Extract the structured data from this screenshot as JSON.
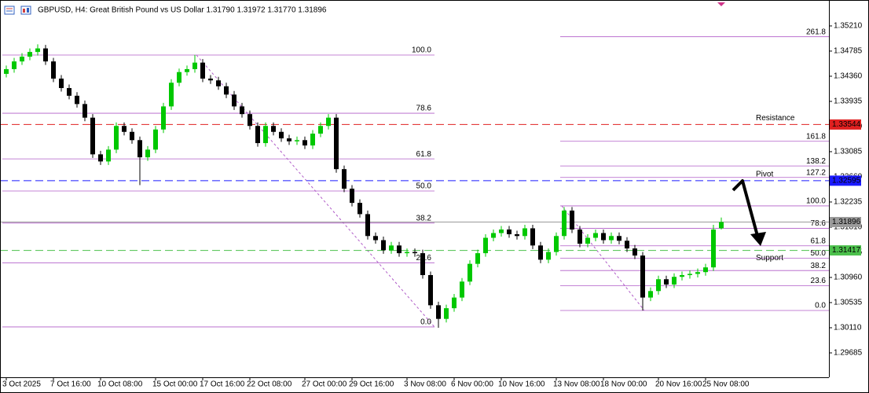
{
  "chart_data": {
    "type": "candlestick",
    "title": "GBPUSD, H4:  Great British Pound vs US Dollar  1.31790 1.31972 1.31770 1.31896",
    "categories": [
      "3 Oct 2025",
      null,
      null,
      null,
      null,
      null,
      "7 Oct 16:00",
      null,
      null,
      null,
      null,
      null,
      "10 Oct 08:00",
      null,
      null,
      null,
      null,
      null,
      null,
      "15 Oct 00:00",
      null,
      null,
      null,
      null,
      null,
      "17 Oct 16:00",
      null,
      null,
      null,
      null,
      null,
      "22 Oct 08:00",
      null,
      null,
      null,
      null,
      null,
      null,
      "27 Oct 00:00",
      null,
      null,
      null,
      null,
      null,
      "29 Oct 16:00",
      null,
      null,
      null,
      null,
      null,
      null,
      "3 Nov 08:00",
      null,
      null,
      null,
      null,
      null,
      "6 Nov 00:00",
      null,
      null,
      null,
      null,
      null,
      "10 Nov 16:00",
      null,
      null,
      null,
      null,
      null,
      null,
      "13 Nov 08:00",
      null,
      null,
      null,
      null,
      null,
      "18 Nov 00:00",
      null,
      null,
      null,
      null,
      null,
      null,
      "20 Nov 16:00",
      null,
      null,
      null,
      null,
      null,
      "25 Nov 08:00",
      null,
      null
    ],
    "open": [
      1.344,
      1.3448,
      1.3461,
      1.3469,
      1.3477,
      1.3483,
      1.3461,
      1.3432,
      1.3416,
      1.3403,
      1.3389,
      1.3366,
      1.3304,
      1.3292,
      1.3312,
      1.3352,
      1.3342,
      1.3328,
      1.3299,
      1.3312,
      1.3346,
      1.3385,
      1.3425,
      1.3443,
      1.3448,
      1.3459,
      1.3432,
      1.3429,
      1.3419,
      1.3405,
      1.3385,
      1.3372,
      1.3352,
      1.3323,
      1.3352,
      1.3342,
      1.3331,
      1.3326,
      1.3328,
      1.3319,
      1.3339,
      1.3352,
      1.3366,
      1.3279,
      1.3246,
      1.3222,
      1.3203,
      1.3166,
      1.3159,
      1.3142,
      1.315,
      1.3137,
      1.3139,
      1.3137,
      1.31,
      1.3049,
      1.3026,
      1.3044,
      1.3062,
      1.3089,
      1.3119,
      1.3137,
      1.3163,
      1.3171,
      1.3177,
      1.3169,
      1.3166,
      1.3179,
      1.315,
      1.3126,
      1.3139,
      1.3166,
      1.3209,
      1.3177,
      1.3153,
      1.3163,
      1.3171,
      1.3159,
      1.3166,
      1.3158,
      1.3145,
      1.3133,
      1.3062,
      1.3073,
      1.3093,
      1.3084,
      1.3097,
      1.31,
      1.3102,
      1.3105,
      1.3113,
      1.3179
    ],
    "high": [
      1.3454,
      1.3467,
      1.3475,
      1.3483,
      1.349,
      1.3489,
      1.3467,
      1.3438,
      1.3422,
      1.3409,
      1.3395,
      1.3372,
      1.331,
      1.3318,
      1.3358,
      1.3358,
      1.3348,
      1.3334,
      1.3318,
      1.3352,
      1.3391,
      1.3431,
      1.3449,
      1.3454,
      1.3472,
      1.3465,
      1.3438,
      1.3435,
      1.3425,
      1.3411,
      1.3391,
      1.3378,
      1.3358,
      1.3358,
      1.3358,
      1.3348,
      1.3337,
      1.3334,
      1.3334,
      1.3345,
      1.3358,
      1.3372,
      1.3372,
      1.3285,
      1.3252,
      1.3228,
      1.3209,
      1.3172,
      1.3165,
      1.3156,
      1.3156,
      1.3145,
      1.3145,
      1.3143,
      1.3106,
      1.3055,
      1.305,
      1.3068,
      1.3095,
      1.3125,
      1.3143,
      1.3169,
      1.3177,
      1.3183,
      1.3183,
      1.3175,
      1.3185,
      1.3185,
      1.3156,
      1.3145,
      1.3172,
      1.3215,
      1.3215,
      1.3183,
      1.3169,
      1.3177,
      1.3177,
      1.3172,
      1.3172,
      1.3164,
      1.3151,
      1.3139,
      1.3079,
      1.3099,
      1.3099,
      1.3103,
      1.3106,
      1.3108,
      1.3111,
      1.3119,
      1.3185,
      1.31972
    ],
    "low": [
      1.3434,
      1.3442,
      1.3455,
      1.3463,
      1.3471,
      1.3455,
      1.3426,
      1.341,
      1.3397,
      1.3383,
      1.336,
      1.3298,
      1.3286,
      1.3286,
      1.3306,
      1.3336,
      1.3322,
      1.3252,
      1.3293,
      1.3306,
      1.334,
      1.3379,
      1.3419,
      1.3437,
      1.3442,
      1.3426,
      1.3423,
      1.3413,
      1.3399,
      1.3379,
      1.3366,
      1.3346,
      1.3317,
      1.3317,
      1.3336,
      1.3325,
      1.332,
      1.332,
      1.3313,
      1.3313,
      1.3333,
      1.3346,
      1.3273,
      1.324,
      1.3216,
      1.3197,
      1.316,
      1.3153,
      1.3136,
      1.3136,
      1.3131,
      1.3131,
      1.3131,
      1.3094,
      1.3043,
      1.3011,
      1.302,
      1.3038,
      1.3056,
      1.3083,
      1.3113,
      1.3131,
      1.3157,
      1.3165,
      1.3163,
      1.316,
      1.316,
      1.3144,
      1.312,
      1.312,
      1.3133,
      1.316,
      1.3171,
      1.3147,
      1.3147,
      1.3157,
      1.3153,
      1.3153,
      1.3152,
      1.3139,
      1.3127,
      1.304,
      1.3056,
      1.3067,
      1.3078,
      1.3078,
      1.3091,
      1.3094,
      1.3096,
      1.3099,
      1.3107,
      1.3177
    ],
    "close": [
      1.3448,
      1.3461,
      1.3469,
      1.3477,
      1.3483,
      1.3461,
      1.3432,
      1.3416,
      1.3403,
      1.3389,
      1.3366,
      1.3304,
      1.3292,
      1.3312,
      1.3352,
      1.3342,
      1.3328,
      1.3299,
      1.3312,
      1.3346,
      1.3385,
      1.3425,
      1.3443,
      1.3448,
      1.3459,
      1.3432,
      1.3429,
      1.3419,
      1.3405,
      1.3385,
      1.3372,
      1.3352,
      1.3323,
      1.3352,
      1.3342,
      1.3331,
      1.3326,
      1.3328,
      1.3319,
      1.3339,
      1.3352,
      1.3366,
      1.3279,
      1.3246,
      1.3222,
      1.3203,
      1.3166,
      1.3159,
      1.3142,
      1.315,
      1.3137,
      1.3139,
      1.3137,
      1.31,
      1.3049,
      1.3026,
      1.3044,
      1.3062,
      1.3089,
      1.3119,
      1.3137,
      1.3163,
      1.3171,
      1.3177,
      1.3169,
      1.3166,
      1.3179,
      1.315,
      1.3126,
      1.3139,
      1.3166,
      1.3209,
      1.3177,
      1.3153,
      1.3163,
      1.3171,
      1.3159,
      1.3166,
      1.3158,
      1.3145,
      1.3133,
      1.3062,
      1.3073,
      1.3093,
      1.3084,
      1.3097,
      1.31,
      1.3102,
      1.3105,
      1.3113,
      1.3177,
      1.31896
    ],
    "up_color": "#00c800",
    "down_color": "#000000",
    "ylim": [
      1.29273,
      1.35648
    ],
    "yticks": [
      {
        "value": 1.3521,
        "label": "1.35210"
      },
      1.34785,
      {
        "value": 1.3436,
        "label": "1.34360"
      },
      1.33935,
      {
        "value": 1.3351,
        "label": "1.33510"
      },
      1.33085,
      {
        "value": 1.3266,
        "label": "1.32660"
      },
      1.32235,
      {
        "value": 1.3181,
        "label": "1.31810"
      },
      1.31385,
      {
        "value": 1.3096,
        "label": "1.30960"
      },
      1.30535,
      {
        "value": 1.3011,
        "label": "1.30110"
      },
      1.29685
    ],
    "levels": [
      {
        "name": "Resistance",
        "value": 1.33544,
        "color": "#e02020"
      },
      {
        "name": "Pivot",
        "value": 1.32595,
        "color": "#1a1aff"
      },
      {
        "name": "Support",
        "value": 1.31417,
        "color": "#4cc04c"
      }
    ],
    "price": {
      "value": 1.31896,
      "color": "#9a9a9a"
    },
    "fibs": [
      {
        "high": 1.34718,
        "low": 1.30124,
        "color": "#b05cc8",
        "levels": [
          {
            "value": 100,
            "label": "100.0"
          },
          78.6,
          61.8,
          {
            "value": 50,
            "label": "50.0"
          },
          38.2,
          23.6,
          {
            "value": 0,
            "label": "0.0"
          }
        ]
      },
      {
        "high": 1.32169,
        "low": 1.30402,
        "color": "#b05cc8",
        "levels": [
          261.8,
          161.8,
          138.2,
          127.2,
          {
            "value": 100,
            "label": "100.0"
          },
          78.6,
          61.8,
          {
            "value": 50,
            "label": "50.0"
          },
          38.2,
          23.6,
          {
            "value": 0,
            "label": "0.0"
          }
        ]
      }
    ]
  }
}
